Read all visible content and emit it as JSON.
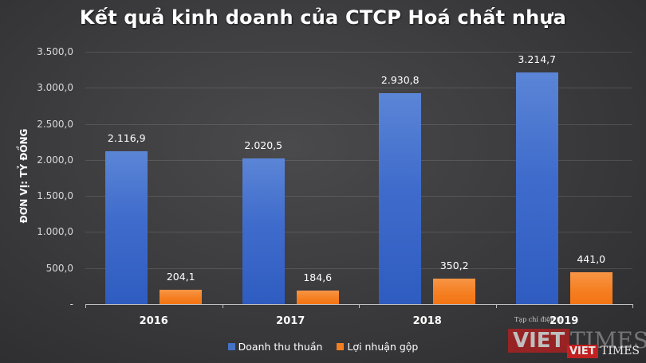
{
  "chart_data": {
    "type": "bar",
    "title": "Kết quả kinh doanh của CTCP Hoá chất nhựa",
    "xlabel": "",
    "ylabel": "ĐƠN VỊ: TỶ ĐỒNG",
    "categories": [
      "2016",
      "2017",
      "2018",
      "2019"
    ],
    "series": [
      {
        "name": "Doanh thu thuần",
        "color": "#4472c4",
        "values": [
          2116.9,
          2020.5,
          2930.8,
          3214.7
        ],
        "labels": [
          "2.116,9",
          "2.020,5",
          "2.930,8",
          "3.214,7"
        ]
      },
      {
        "name": "Lợi nhuận gộp",
        "color": "#f57e20",
        "values": [
          204.1,
          184.6,
          350.2,
          441.0
        ],
        "labels": [
          "204,1",
          "184,6",
          "350,2",
          "441,0"
        ]
      }
    ],
    "ylim": [
      0,
      3500
    ],
    "yticks": [
      "-",
      "500,0",
      "1.000,0",
      "1.500,0",
      "2.000,0",
      "2.500,0",
      "3.000,0",
      "3.500,0"
    ],
    "grid": true,
    "legend_position": "bottom"
  },
  "watermark": {
    "small_text": "Tạp chí điện tử",
    "brand_left": "VIET",
    "brand_right": "TIMES"
  }
}
